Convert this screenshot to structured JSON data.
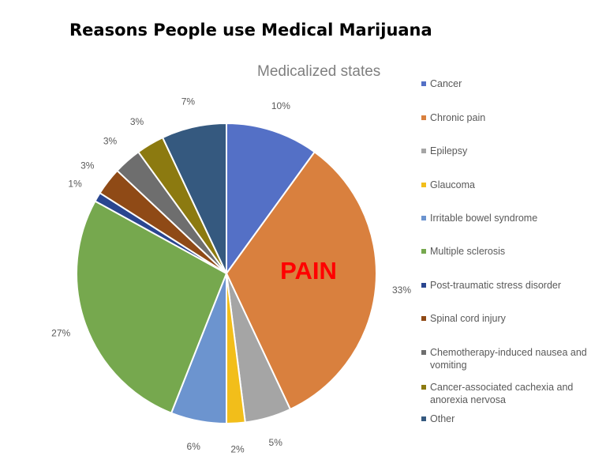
{
  "page_title": "Reasons People use Medical Marijuana",
  "overlay_text": "PAIN",
  "chart_data": {
    "type": "pie",
    "title": "Medicalized states",
    "legend_position": "right",
    "slices": [
      {
        "label": "Cancer",
        "value": 10,
        "display": "10%",
        "color": "#5470C6"
      },
      {
        "label": "Chronic pain",
        "value": 33,
        "display": "33%",
        "color": "#D9803E"
      },
      {
        "label": "Epilepsy",
        "value": 5,
        "display": "5%",
        "color": "#A5A5A5"
      },
      {
        "label": "Glaucoma",
        "value": 2,
        "display": "2%",
        "color": "#F2BE1A"
      },
      {
        "label": "Irritable bowel syndrome",
        "value": 6,
        "display": "6%",
        "color": "#6C94CF"
      },
      {
        "label": "Multiple sclerosis",
        "value": 27,
        "display": "27%",
        "color": "#76A84E"
      },
      {
        "label": "Post-traumatic stress disorder",
        "value": 1,
        "display": "1%",
        "color": "#2A4690"
      },
      {
        "label": "Spinal cord injury",
        "value": 3,
        "display": "3%",
        "color": "#8F4A16"
      },
      {
        "label": "Chemotherapy-induced nausea and vomiting",
        "value": 3,
        "display": "3%",
        "color": "#6E6E6E"
      },
      {
        "label": "Cancer-associated cachexia and anorexia nervosa",
        "value": 3,
        "display": "3%",
        "color": "#8C7A10"
      },
      {
        "label": "Other",
        "value": 7,
        "display": "7%",
        "color": "#35597F"
      }
    ]
  }
}
